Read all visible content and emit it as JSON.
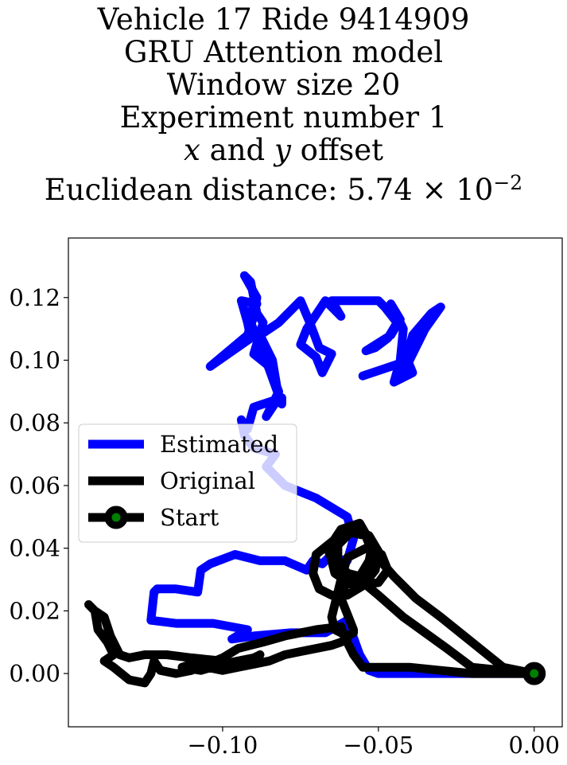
{
  "title": {
    "line1": "Vehicle 17 Ride 9414909",
    "line2": "GRU Attention model",
    "line3": "Window size 20",
    "line4": "Experiment number 1",
    "line5_x": "x",
    "line5_mid": " and ",
    "line5_y": "y",
    "line5_end": " offset",
    "line6_prefix": "Euclidean distance: 5.74 × 10",
    "line6_exp": "−2"
  },
  "chart_data": {
    "type": "line",
    "xlim": [
      -0.1495,
      0.009
    ],
    "ylim": [
      -0.017,
      0.139
    ],
    "x_ticks": [
      -0.1,
      -0.05,
      0.0
    ],
    "x_tick_labels": [
      "−0.10",
      "−0.05",
      "0.00"
    ],
    "y_ticks": [
      0.0,
      0.02,
      0.04,
      0.06,
      0.08,
      0.1,
      0.12
    ],
    "y_tick_labels": [
      "0.00",
      "0.02",
      "0.04",
      "0.06",
      "0.08",
      "0.10",
      "0.12"
    ],
    "grid": false,
    "legend_placement": "center-left",
    "colors": {
      "estimated": "#0000ff",
      "original": "#000000",
      "start_marker": "#008000"
    },
    "series": [
      {
        "name": "Estimated",
        "color": "#0000ff",
        "points": [
          [
            0.0,
            0.0
          ],
          [
            -0.01,
            0.0
          ],
          [
            -0.02,
            0.0
          ],
          [
            -0.03,
            0.0
          ],
          [
            -0.04,
            0.0
          ],
          [
            -0.05,
            0.0
          ],
          [
            -0.053,
            0.001
          ],
          [
            -0.056,
            0.006
          ],
          [
            -0.06,
            0.017
          ],
          [
            -0.067,
            0.013
          ],
          [
            -0.078,
            0.013
          ],
          [
            -0.09,
            0.012
          ],
          [
            -0.097,
            0.011
          ],
          [
            -0.092,
            0.014
          ],
          [
            -0.103,
            0.016
          ],
          [
            -0.115,
            0.016
          ],
          [
            -0.123,
            0.017
          ],
          [
            -0.122,
            0.026
          ],
          [
            -0.121,
            0.027
          ],
          [
            -0.115,
            0.027
          ],
          [
            -0.108,
            0.026
          ],
          [
            -0.107,
            0.033
          ],
          [
            -0.104,
            0.035
          ],
          [
            -0.096,
            0.038
          ],
          [
            -0.088,
            0.036
          ],
          [
            -0.08,
            0.036
          ],
          [
            -0.073,
            0.033
          ],
          [
            -0.071,
            0.036
          ],
          [
            -0.068,
            0.035
          ],
          [
            -0.066,
            0.037
          ],
          [
            -0.06,
            0.036
          ],
          [
            -0.058,
            0.043
          ],
          [
            -0.06,
            0.05
          ],
          [
            -0.07,
            0.056
          ],
          [
            -0.08,
            0.06
          ],
          [
            -0.086,
            0.066
          ],
          [
            -0.083,
            0.07
          ],
          [
            -0.09,
            0.072
          ],
          [
            -0.093,
            0.076
          ],
          [
            -0.094,
            0.081
          ],
          [
            -0.092,
            0.078
          ],
          [
            -0.09,
            0.085
          ],
          [
            -0.081,
            0.088
          ],
          [
            -0.081,
            0.086
          ],
          [
            -0.085,
            0.097
          ],
          [
            -0.088,
            0.105
          ],
          [
            -0.091,
            0.112
          ],
          [
            -0.092,
            0.115
          ],
          [
            -0.089,
            0.118
          ],
          [
            -0.094,
            0.119
          ],
          [
            -0.092,
            0.112
          ],
          [
            -0.091,
            0.107
          ],
          [
            -0.104,
            0.098
          ],
          [
            -0.092,
            0.108
          ],
          [
            -0.09,
            0.114
          ],
          [
            -0.089,
            0.12
          ],
          [
            -0.093,
            0.127
          ],
          [
            -0.091,
            0.125
          ],
          [
            -0.089,
            0.115
          ],
          [
            -0.087,
            0.112
          ],
          [
            -0.09,
            0.102
          ],
          [
            -0.085,
            0.098
          ],
          [
            -0.082,
            0.09
          ],
          [
            -0.086,
            0.082
          ],
          [
            -0.082,
            0.088
          ],
          [
            -0.084,
            0.1
          ],
          [
            -0.088,
            0.108
          ],
          [
            -0.082,
            0.112
          ],
          [
            -0.075,
            0.119
          ],
          [
            -0.072,
            0.112
          ],
          [
            -0.069,
            0.104
          ],
          [
            -0.065,
            0.102
          ],
          [
            -0.068,
            0.096
          ],
          [
            -0.07,
            0.101
          ],
          [
            -0.075,
            0.105
          ],
          [
            -0.073,
            0.11
          ],
          [
            -0.067,
            0.119
          ],
          [
            -0.062,
            0.114
          ],
          [
            -0.065,
            0.119
          ],
          [
            -0.06,
            0.119
          ],
          [
            -0.05,
            0.119
          ],
          [
            -0.048,
            0.117
          ],
          [
            -0.044,
            0.112
          ],
          [
            -0.047,
            0.107
          ],
          [
            -0.051,
            0.104
          ],
          [
            -0.054,
            0.103
          ],
          [
            -0.046,
            0.108
          ],
          [
            -0.043,
            0.113
          ],
          [
            -0.046,
            0.118
          ],
          [
            -0.042,
            0.11
          ],
          [
            -0.043,
            0.1
          ],
          [
            -0.045,
            0.093
          ],
          [
            -0.039,
            0.096
          ],
          [
            -0.041,
            0.101
          ],
          [
            -0.039,
            0.108
          ],
          [
            -0.033,
            0.115
          ],
          [
            -0.03,
            0.117
          ],
          [
            -0.035,
            0.11
          ],
          [
            -0.04,
            0.1
          ],
          [
            -0.042,
            0.096
          ],
          [
            -0.043,
            0.099
          ],
          [
            -0.049,
            0.097
          ],
          [
            -0.055,
            0.095
          ]
        ]
      },
      {
        "name": "Original",
        "color": "#000000",
        "points": [
          [
            0.0,
            0.0
          ],
          [
            -0.01,
            0.002
          ],
          [
            -0.02,
            0.01
          ],
          [
            -0.03,
            0.018
          ],
          [
            -0.038,
            0.024
          ],
          [
            -0.045,
            0.031
          ],
          [
            -0.052,
            0.039
          ],
          [
            -0.055,
            0.046
          ],
          [
            -0.06,
            0.046
          ],
          [
            -0.065,
            0.042
          ],
          [
            -0.07,
            0.038
          ],
          [
            -0.071,
            0.032
          ],
          [
            -0.069,
            0.027
          ],
          [
            -0.065,
            0.025
          ],
          [
            -0.06,
            0.025
          ],
          [
            -0.055,
            0.028
          ],
          [
            -0.051,
            0.033
          ],
          [
            -0.05,
            0.039
          ],
          [
            -0.053,
            0.044
          ],
          [
            -0.058,
            0.046
          ],
          [
            -0.063,
            0.044
          ],
          [
            -0.066,
            0.039
          ],
          [
            -0.064,
            0.034
          ],
          [
            -0.06,
            0.03
          ],
          [
            -0.055,
            0.031
          ],
          [
            -0.052,
            0.035
          ],
          [
            -0.051,
            0.04
          ],
          [
            -0.054,
            0.044
          ],
          [
            -0.059,
            0.045
          ],
          [
            -0.063,
            0.041
          ],
          [
            -0.063,
            0.036
          ],
          [
            -0.06,
            0.032
          ],
          [
            -0.056,
            0.031
          ],
          [
            -0.053,
            0.036
          ],
          [
            -0.052,
            0.041
          ],
          [
            -0.056,
            0.048
          ],
          [
            -0.062,
            0.046
          ],
          [
            -0.066,
            0.04
          ],
          [
            -0.064,
            0.032
          ],
          [
            -0.058,
            0.028
          ],
          [
            -0.05,
            0.029
          ],
          [
            -0.047,
            0.033
          ],
          [
            -0.049,
            0.038
          ],
          [
            -0.054,
            0.04
          ],
          [
            -0.06,
            0.037
          ],
          [
            -0.062,
            0.03
          ],
          [
            -0.065,
            0.018
          ],
          [
            -0.064,
            0.014
          ],
          [
            -0.06,
            0.012
          ],
          [
            -0.058,
            0.013
          ],
          [
            -0.058,
            0.014
          ],
          [
            -0.06,
            0.019
          ],
          [
            -0.062,
            0.024
          ],
          [
            -0.06,
            0.03
          ],
          [
            -0.056,
            0.03
          ],
          [
            -0.05,
            0.025
          ],
          [
            -0.042,
            0.018
          ],
          [
            -0.035,
            0.013
          ],
          [
            -0.028,
            0.008
          ],
          [
            -0.02,
            0.002
          ],
          [
            -0.01,
            0.001
          ],
          [
            0.0,
            0.0
          ],
          [
            -0.01,
            0.0
          ],
          [
            -0.02,
            0.0
          ],
          [
            -0.03,
            0.001
          ],
          [
            -0.04,
            0.002
          ],
          [
            -0.05,
            0.002
          ],
          [
            -0.055,
            0.002
          ],
          [
            -0.058,
            0.006
          ],
          [
            -0.061,
            0.012
          ],
          [
            -0.062,
            0.015
          ],
          [
            -0.07,
            0.014
          ],
          [
            -0.08,
            0.012
          ],
          [
            -0.087,
            0.01
          ],
          [
            -0.095,
            0.008
          ],
          [
            -0.1,
            0.005
          ],
          [
            -0.105,
            0.003
          ],
          [
            -0.11,
            0.001
          ],
          [
            -0.115,
            0.0
          ],
          [
            -0.12,
            0.001
          ],
          [
            -0.122,
            0.004
          ],
          [
            -0.123,
            0.0
          ],
          [
            -0.125,
            -0.003
          ],
          [
            -0.13,
            -0.002
          ],
          [
            -0.135,
            0.002
          ],
          [
            -0.138,
            0.004
          ],
          [
            -0.135,
            0.006
          ],
          [
            -0.137,
            0.01
          ],
          [
            -0.14,
            0.014
          ],
          [
            -0.141,
            0.02
          ],
          [
            -0.143,
            0.022
          ],
          [
            -0.141,
            0.02
          ],
          [
            -0.138,
            0.018
          ],
          [
            -0.136,
            0.012
          ],
          [
            -0.133,
            0.006
          ],
          [
            -0.13,
            0.005
          ],
          [
            -0.125,
            0.006
          ],
          [
            -0.118,
            0.006
          ],
          [
            -0.11,
            0.005
          ],
          [
            -0.1,
            0.004
          ],
          [
            -0.095,
            0.003
          ],
          [
            -0.09,
            0.004
          ],
          [
            -0.088,
            0.006
          ],
          [
            -0.09,
            0.005
          ],
          [
            -0.095,
            0.004
          ],
          [
            -0.1,
            0.003
          ],
          [
            -0.107,
            0.001
          ],
          [
            -0.113,
            0.002
          ],
          [
            -0.11,
            0.003
          ],
          [
            -0.105,
            0.002
          ],
          [
            -0.1,
            0.001
          ],
          [
            -0.095,
            0.002
          ],
          [
            -0.09,
            0.003
          ],
          [
            -0.085,
            0.004
          ],
          [
            -0.08,
            0.006
          ],
          [
            -0.075,
            0.007
          ],
          [
            -0.07,
            0.008
          ],
          [
            -0.065,
            0.009
          ],
          [
            -0.062,
            0.01
          ],
          [
            -0.06,
            0.011
          ]
        ]
      }
    ],
    "legend": [
      {
        "label": "Estimated"
      },
      {
        "label": "Original"
      },
      {
        "label": "Start"
      }
    ],
    "start_point": [
      0.0,
      0.0
    ]
  }
}
